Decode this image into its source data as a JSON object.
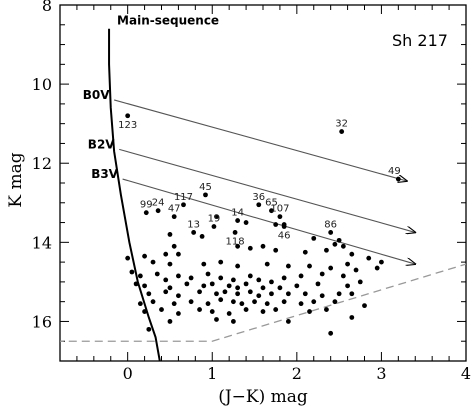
{
  "chart_data": {
    "type": "scatter",
    "title": "Sh 217",
    "xlabel": "(J−K) mag",
    "ylabel": "K mag",
    "xlim": [
      -0.8,
      4
    ],
    "ylim": [
      17,
      8
    ],
    "xticks": [
      "0",
      "1",
      "2",
      "3",
      "4"
    ],
    "yticks": [
      "8",
      "10",
      "12",
      "14",
      "16"
    ],
    "xtick_values": [
      0,
      1,
      2,
      3,
      4
    ],
    "ytick_values": [
      8,
      10,
      12,
      14,
      16
    ],
    "grid": false,
    "main_sequence": {
      "label": "Main-sequence",
      "points": [
        [
          -0.22,
          8.6
        ],
        [
          -0.22,
          9.5
        ],
        [
          -0.2,
          10.6
        ],
        [
          -0.16,
          11.7
        ],
        [
          -0.08,
          12.8
        ],
        [
          0.02,
          14.0
        ],
        [
          0.12,
          15.0
        ],
        [
          0.25,
          15.9
        ],
        [
          0.33,
          16.4
        ],
        [
          0.38,
          17.0
        ]
      ]
    },
    "spectral_types": [
      {
        "label": "B0V",
        "start": [
          -0.16,
          10.4
        ],
        "end": [
          3.3,
          12.45
        ]
      },
      {
        "label": "B2V",
        "start": [
          -0.1,
          11.65
        ],
        "end": [
          3.4,
          13.75
        ]
      },
      {
        "label": "B3V",
        "start": [
          -0.06,
          12.4
        ],
        "end": [
          3.4,
          14.55
        ]
      }
    ],
    "completeness_limit": [
      [
        -0.85,
        16.5
      ],
      [
        1.0,
        16.5
      ],
      [
        4.0,
        14.55
      ]
    ],
    "labeled_points": [
      {
        "label": "123",
        "x": 0.0,
        "y": 10.8
      },
      {
        "label": "32",
        "x": 2.53,
        "y": 11.2
      },
      {
        "label": "49",
        "x": 3.2,
        "y": 12.4
      },
      {
        "label": "45",
        "x": 0.92,
        "y": 12.8
      },
      {
        "label": "117",
        "x": 0.66,
        "y": 13.05
      },
      {
        "label": "99",
        "x": 0.22,
        "y": 13.25
      },
      {
        "label": "24",
        "x": 0.36,
        "y": 13.2
      },
      {
        "label": "47",
        "x": 0.55,
        "y": 13.35
      },
      {
        "label": "36",
        "x": 1.55,
        "y": 13.05
      },
      {
        "label": "65",
        "x": 1.7,
        "y": 13.2
      },
      {
        "label": "107",
        "x": 1.8,
        "y": 13.35
      },
      {
        "label": "14",
        "x": 1.3,
        "y": 13.45
      },
      {
        "label": "19",
        "x": 1.02,
        "y": 13.6
      },
      {
        "label": "13",
        "x": 0.78,
        "y": 13.75
      },
      {
        "label": "118",
        "x": 1.27,
        "y": 13.75
      },
      {
        "label": "46",
        "x": 1.85,
        "y": 13.6
      },
      {
        "label": "86",
        "x": 2.4,
        "y": 13.75
      }
    ],
    "points": [
      [
        1.05,
        13.35
      ],
      [
        1.4,
        13.5
      ],
      [
        1.75,
        13.55
      ],
      [
        1.85,
        13.55
      ],
      [
        0.5,
        13.8
      ],
      [
        0.88,
        13.85
      ],
      [
        2.2,
        13.9
      ],
      [
        2.5,
        13.95
      ],
      [
        2.45,
        14.05
      ],
      [
        0.55,
        14.1
      ],
      [
        0.6,
        14.3
      ],
      [
        1.3,
        14.1
      ],
      [
        1.45,
        14.15
      ],
      [
        1.6,
        14.1
      ],
      [
        1.75,
        14.2
      ],
      [
        2.1,
        14.25
      ],
      [
        2.35,
        14.2
      ],
      [
        2.55,
        14.1
      ],
      [
        2.65,
        14.3
      ],
      [
        2.85,
        14.4
      ],
      [
        3.0,
        14.5
      ],
      [
        0.0,
        14.4
      ],
      [
        0.2,
        14.35
      ],
      [
        0.3,
        14.5
      ],
      [
        0.45,
        14.3
      ],
      [
        0.5,
        14.55
      ],
      [
        0.9,
        14.55
      ],
      [
        1.1,
        14.5
      ],
      [
        1.3,
        14.6
      ],
      [
        1.65,
        14.55
      ],
      [
        1.9,
        14.6
      ],
      [
        2.15,
        14.6
      ],
      [
        2.4,
        14.65
      ],
      [
        2.6,
        14.55
      ],
      [
        2.7,
        14.7
      ],
      [
        2.95,
        14.65
      ],
      [
        0.05,
        14.75
      ],
      [
        0.15,
        14.85
      ],
      [
        0.35,
        14.8
      ],
      [
        0.45,
        14.95
      ],
      [
        0.6,
        14.85
      ],
      [
        0.75,
        14.9
      ],
      [
        0.95,
        14.8
      ],
      [
        1.1,
        14.9
      ],
      [
        1.25,
        14.95
      ],
      [
        1.45,
        14.85
      ],
      [
        1.55,
        14.95
      ],
      [
        1.7,
        15.0
      ],
      [
        1.85,
        14.9
      ],
      [
        2.05,
        14.85
      ],
      [
        2.3,
        14.8
      ],
      [
        2.55,
        14.85
      ],
      [
        0.1,
        15.05
      ],
      [
        0.2,
        15.1
      ],
      [
        0.5,
        15.15
      ],
      [
        0.7,
        15.05
      ],
      [
        0.9,
        15.1
      ],
      [
        1.0,
        15.05
      ],
      [
        1.2,
        15.1
      ],
      [
        1.3,
        15.15
      ],
      [
        1.4,
        15.05
      ],
      [
        1.6,
        15.15
      ],
      [
        1.8,
        15.15
      ],
      [
        2.0,
        15.1
      ],
      [
        2.25,
        15.05
      ],
      [
        2.6,
        15.1
      ],
      [
        2.75,
        15.0
      ],
      [
        0.25,
        15.3
      ],
      [
        0.45,
        15.25
      ],
      [
        0.6,
        15.35
      ],
      [
        0.85,
        15.25
      ],
      [
        1.05,
        15.3
      ],
      [
        1.15,
        15.25
      ],
      [
        1.3,
        15.3
      ],
      [
        1.45,
        15.25
      ],
      [
        1.55,
        15.35
      ],
      [
        1.7,
        15.3
      ],
      [
        1.9,
        15.3
      ],
      [
        2.1,
        15.3
      ],
      [
        2.3,
        15.35
      ],
      [
        2.5,
        15.3
      ],
      [
        2.65,
        15.3
      ],
      [
        0.15,
        15.55
      ],
      [
        0.3,
        15.5
      ],
      [
        0.55,
        15.55
      ],
      [
        0.75,
        15.5
      ],
      [
        0.95,
        15.55
      ],
      [
        1.1,
        15.45
      ],
      [
        1.25,
        15.5
      ],
      [
        1.35,
        15.55
      ],
      [
        1.5,
        15.5
      ],
      [
        1.65,
        15.55
      ],
      [
        1.85,
        15.5
      ],
      [
        2.05,
        15.55
      ],
      [
        2.2,
        15.5
      ],
      [
        2.45,
        15.5
      ],
      [
        2.8,
        15.6
      ],
      [
        0.2,
        15.75
      ],
      [
        0.4,
        15.7
      ],
      [
        0.6,
        15.8
      ],
      [
        0.85,
        15.7
      ],
      [
        1.0,
        15.75
      ],
      [
        1.2,
        15.8
      ],
      [
        1.4,
        15.7
      ],
      [
        1.6,
        15.75
      ],
      [
        1.75,
        15.7
      ],
      [
        2.15,
        15.75
      ],
      [
        2.35,
        15.7
      ],
      [
        0.5,
        16.0
      ],
      [
        1.05,
        15.95
      ],
      [
        1.25,
        16.0
      ],
      [
        1.9,
        16.0
      ],
      [
        2.65,
        15.9
      ],
      [
        0.25,
        16.2
      ],
      [
        2.4,
        16.3
      ]
    ]
  }
}
